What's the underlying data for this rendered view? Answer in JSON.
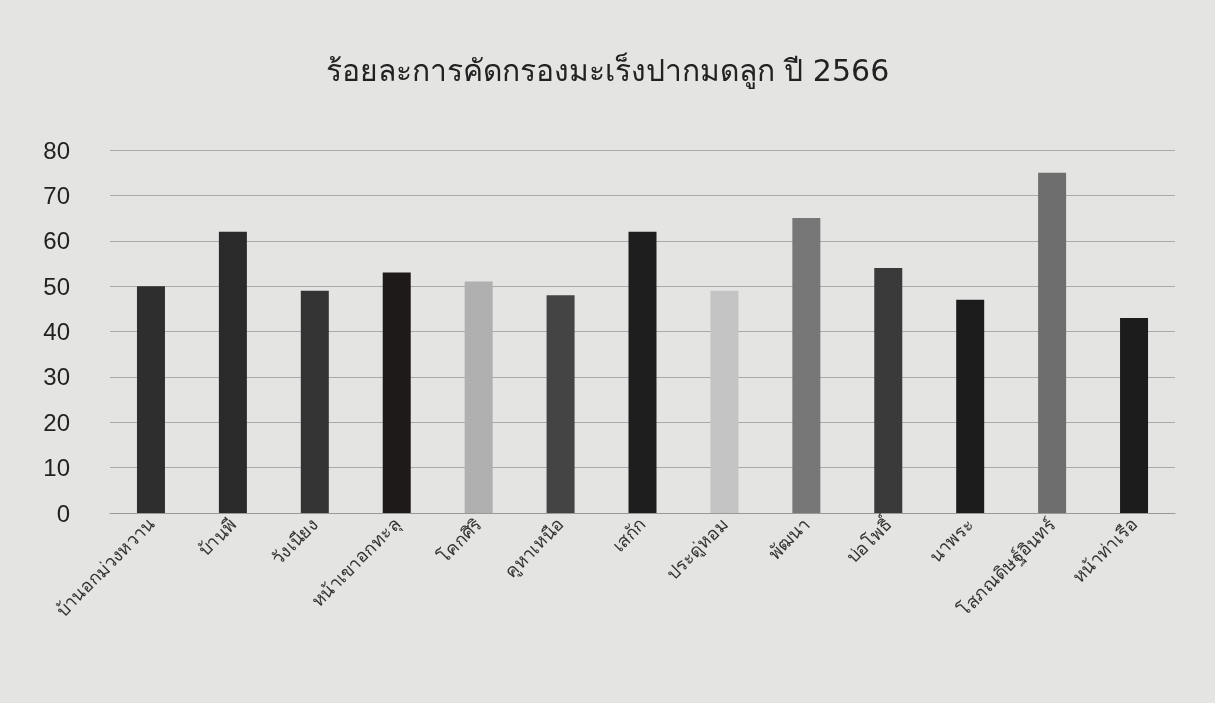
{
  "chart_data": {
    "type": "bar",
    "title": "ร้อยละการคัดกรองมะเร็งปากมดลูก ปี 2566",
    "categories": [
      "บ้านอกม่วงหวาน",
      "บ้านพี",
      "วังเนียง",
      "หน้าเขาอกทะลุ",
      "โคกศิริ",
      "คูหาเหนือ",
      "เสกัก",
      "ประดู่หอม",
      "พัฒนา",
      "บ่อโพธิ์",
      "นาพระ",
      "โสภณดิษฐ์อินทร์",
      "หน้าท่าเรือ"
    ],
    "values": [
      50,
      62,
      49,
      53,
      51,
      48,
      62,
      49,
      65,
      54,
      47,
      75,
      43
    ],
    "colors": [
      "#2e2e2e",
      "#2a2a2a",
      "#333333",
      "#1e1a1a",
      "#b0b0b0",
      "#444444",
      "#1e1e1e",
      "#c4c4c4",
      "#777777",
      "#3a3a3a",
      "#1c1c1c",
      "#6e6e6e",
      "#1c1c1c"
    ],
    "ylim": [
      0,
      80
    ],
    "yticks": [
      0,
      10,
      20,
      30,
      40,
      50,
      60,
      70,
      80
    ],
    "grid": "y"
  }
}
